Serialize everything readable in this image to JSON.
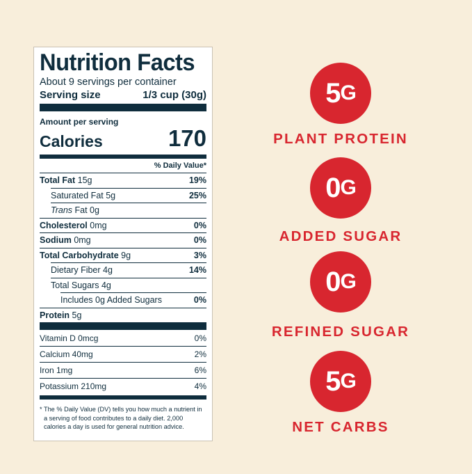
{
  "label": {
    "title": "Nutrition Facts",
    "servings": "About 9 servings per container",
    "serving_size_label": "Serving size",
    "serving_size_value": "1/3 cup (30g)",
    "amount_per_serving": "Amount per serving",
    "calories_label": "Calories",
    "calories_value": "170",
    "dv_header": "% Daily Value*",
    "rows": [
      {
        "bold": "Total Fat",
        "rest": " 15g",
        "pct": "19%"
      },
      {
        "bold": "",
        "rest": "Saturated Fat 5g",
        "pct": "25%"
      },
      {
        "italic": "Trans",
        "rest": " Fat 0g",
        "pct": ""
      },
      {
        "bold": "Cholesterol",
        "rest": " 0mg",
        "pct": "0%"
      },
      {
        "bold": "Sodium",
        "rest": " 0mg",
        "pct": "0%"
      },
      {
        "bold": "Total Carbohydrate",
        "rest": " 9g",
        "pct": "3%"
      },
      {
        "bold": "",
        "rest": "Dietary Fiber 4g",
        "pct": "14%"
      },
      {
        "bold": "",
        "rest": "Total Sugars 4g",
        "pct": ""
      },
      {
        "bold": "",
        "rest": "Includes 0g Added Sugars",
        "pct": "0%"
      },
      {
        "bold": "Protein",
        "rest": " 5g",
        "pct": ""
      }
    ],
    "vitamins": [
      {
        "name": "Vitamin D 0mcg",
        "pct": "0%"
      },
      {
        "name": "Calcium 40mg",
        "pct": "2%"
      },
      {
        "name": "Iron 1mg",
        "pct": "6%"
      },
      {
        "name": "Potassium 210mg",
        "pct": "4%"
      }
    ],
    "footnote": "* The % Daily Value (DV) tells you how much a nutrient in a serving of food contributes to a daily diet. 2,000 calories a day is used for general nutrition advice."
  },
  "claims": [
    {
      "amount": "5",
      "unit": "G",
      "text": "PLANT PROTEIN"
    },
    {
      "amount": "0",
      "unit": "G",
      "text": "ADDED SUGAR"
    },
    {
      "amount": "0",
      "unit": "G",
      "text": "REFINED SUGAR"
    },
    {
      "amount": "5",
      "unit": "G",
      "text": "NET CARBS"
    }
  ],
  "colors": {
    "background": "#f8eedb",
    "accent_red": "#d8262f",
    "ink": "#0f2d3d"
  }
}
